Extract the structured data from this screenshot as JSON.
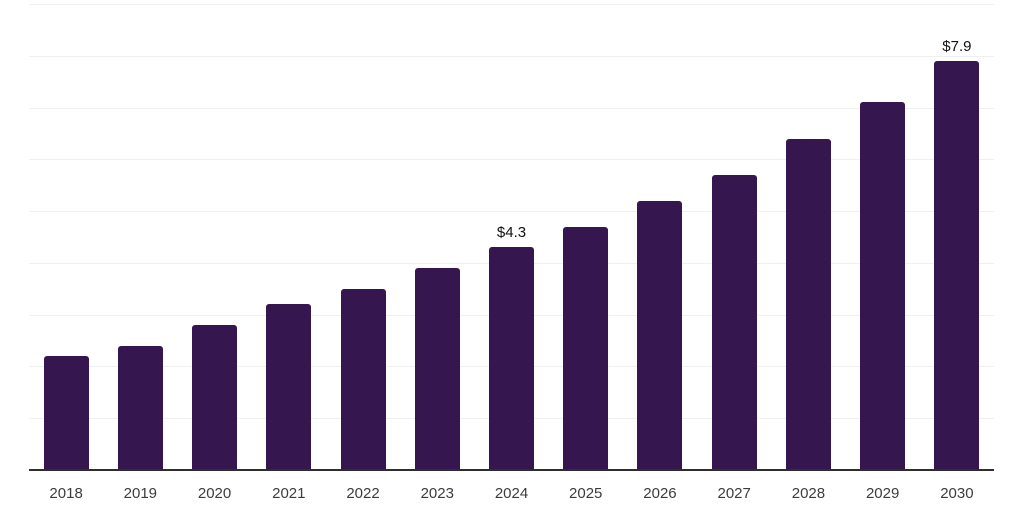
{
  "chart_data": {
    "type": "bar",
    "title": "",
    "xlabel": "",
    "ylabel": "",
    "categories": [
      "2018",
      "2019",
      "2020",
      "2021",
      "2022",
      "2023",
      "2024",
      "2025",
      "2026",
      "2027",
      "2028",
      "2029",
      "2030"
    ],
    "values": [
      2.2,
      2.4,
      2.8,
      3.2,
      3.5,
      3.9,
      4.3,
      4.7,
      5.2,
      5.7,
      6.4,
      7.1,
      7.9
    ],
    "bar_labels": [
      "",
      "",
      "",
      "",
      "",
      "",
      "$4.3",
      "",
      "",
      "",
      "",
      "",
      "$7.9"
    ],
    "ylim": [
      0,
      9
    ],
    "gridline_values": [
      1,
      2,
      3,
      4,
      5,
      6,
      7,
      8,
      9
    ],
    "grid": "horizontal",
    "legend_position": "none",
    "y_axis_labels_visible": false,
    "colors": {
      "bar": "#36164E",
      "axis_line": "#2E2E2E",
      "gridline": "#F0F0F0",
      "tick_label": "#3C3C3C",
      "data_label": "#111111",
      "background": "#FFFFFF"
    }
  }
}
